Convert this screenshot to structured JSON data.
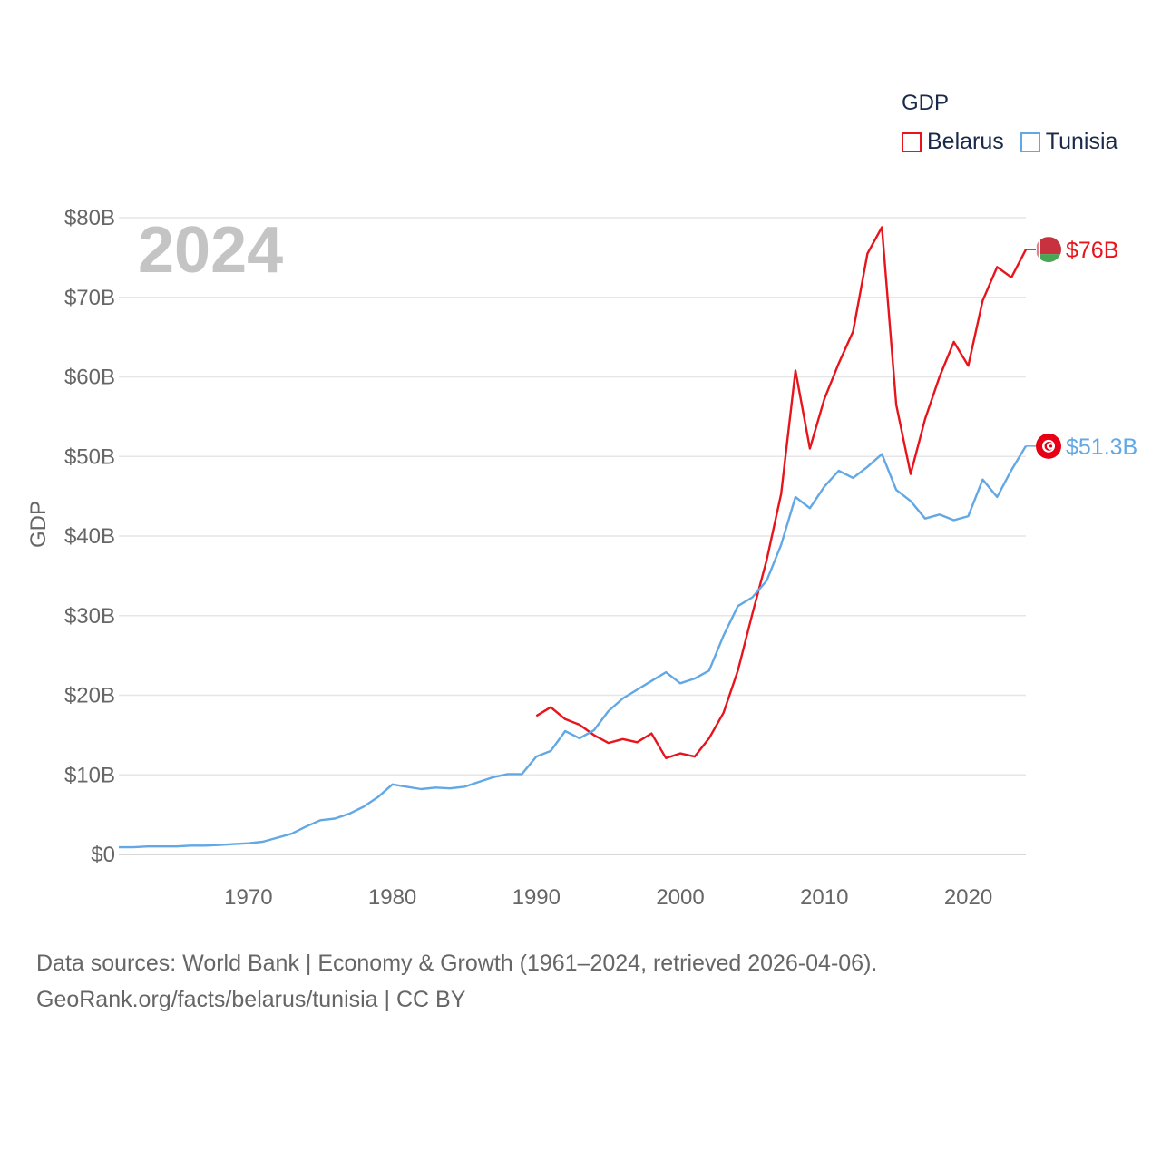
{
  "legend": {
    "title": "GDP",
    "items": [
      {
        "name": "Belarus",
        "color": "#e8141c"
      },
      {
        "name": "Tunisia",
        "color": "#62a8e5"
      }
    ]
  },
  "footer": {
    "line1": "Data sources: World Bank | Economy & Growth (1961–2024, retrieved 2026-04-06).",
    "line2": "GeoRank.org/facts/belarus/tunisia | CC BY"
  },
  "chart_data": {
    "type": "line",
    "title": "GDP",
    "year_label": "2024",
    "xlabel": "",
    "ylabel": "GDP",
    "xlim": [
      1961,
      2024
    ],
    "ylim": [
      0,
      80
    ],
    "x_ticks": [
      1970,
      1980,
      1990,
      2000,
      2010,
      2020
    ],
    "y_ticks": [
      {
        "value": 0,
        "label": "$0"
      },
      {
        "value": 10,
        "label": "$10B"
      },
      {
        "value": 20,
        "label": "$20B"
      },
      {
        "value": 30,
        "label": "$30B"
      },
      {
        "value": 40,
        "label": "$40B"
      },
      {
        "value": 50,
        "label": "$50B"
      },
      {
        "value": 60,
        "label": "$60B"
      },
      {
        "value": 70,
        "label": "$70B"
      },
      {
        "value": 80,
        "label": "$80B"
      }
    ],
    "units": "billions USD",
    "series": [
      {
        "name": "Belarus",
        "color": "#e8141c",
        "end_label": "$76B",
        "flag": "belarus-flag-icon",
        "x": [
          1990,
          1991,
          1992,
          1993,
          1994,
          1995,
          1996,
          1997,
          1998,
          1999,
          2000,
          2001,
          2002,
          2003,
          2004,
          2005,
          2006,
          2007,
          2008,
          2009,
          2010,
          2011,
          2012,
          2013,
          2014,
          2015,
          2016,
          2017,
          2018,
          2019,
          2020,
          2021,
          2022,
          2023,
          2024
        ],
        "values": [
          17.4,
          18.5,
          17.0,
          16.3,
          15.0,
          14.0,
          14.5,
          14.1,
          15.2,
          12.1,
          12.7,
          12.3,
          14.6,
          17.8,
          23.1,
          30.2,
          37.0,
          45.3,
          60.8,
          51.0,
          57.2,
          61.7,
          65.7,
          75.5,
          78.8,
          56.5,
          47.8,
          54.7,
          60.0,
          64.4,
          61.4,
          69.6,
          73.8,
          72.5,
          76.0
        ]
      },
      {
        "name": "Tunisia",
        "color": "#62a8e5",
        "end_label": "$51.3B",
        "flag": "tunisia-flag-icon",
        "x": [
          1961,
          1962,
          1963,
          1964,
          1965,
          1966,
          1967,
          1968,
          1969,
          1970,
          1971,
          1972,
          1973,
          1974,
          1975,
          1976,
          1977,
          1978,
          1979,
          1980,
          1981,
          1982,
          1983,
          1984,
          1985,
          1986,
          1987,
          1988,
          1989,
          1990,
          1991,
          1992,
          1993,
          1994,
          1995,
          1996,
          1997,
          1998,
          1999,
          2000,
          2001,
          2002,
          2003,
          2004,
          2005,
          2006,
          2007,
          2008,
          2009,
          2010,
          2011,
          2012,
          2013,
          2014,
          2015,
          2016,
          2017,
          2018,
          2019,
          2020,
          2021,
          2022,
          2023,
          2024
        ],
        "values": [
          0.9,
          0.9,
          1.0,
          1.0,
          1.0,
          1.1,
          1.1,
          1.2,
          1.3,
          1.4,
          1.6,
          2.1,
          2.6,
          3.5,
          4.3,
          4.5,
          5.1,
          6.0,
          7.2,
          8.8,
          8.5,
          8.2,
          8.4,
          8.3,
          8.5,
          9.1,
          9.7,
          10.1,
          10.1,
          12.3,
          13.0,
          15.5,
          14.6,
          15.6,
          18.0,
          19.6,
          20.7,
          21.8,
          22.9,
          21.5,
          22.1,
          23.1,
          27.5,
          31.2,
          32.3,
          34.4,
          38.9,
          44.9,
          43.5,
          46.2,
          48.2,
          47.3,
          48.7,
          50.3,
          45.8,
          44.4,
          42.2,
          42.7,
          42.0,
          42.5,
          47.1,
          44.9,
          48.3,
          51.3
        ]
      }
    ]
  }
}
